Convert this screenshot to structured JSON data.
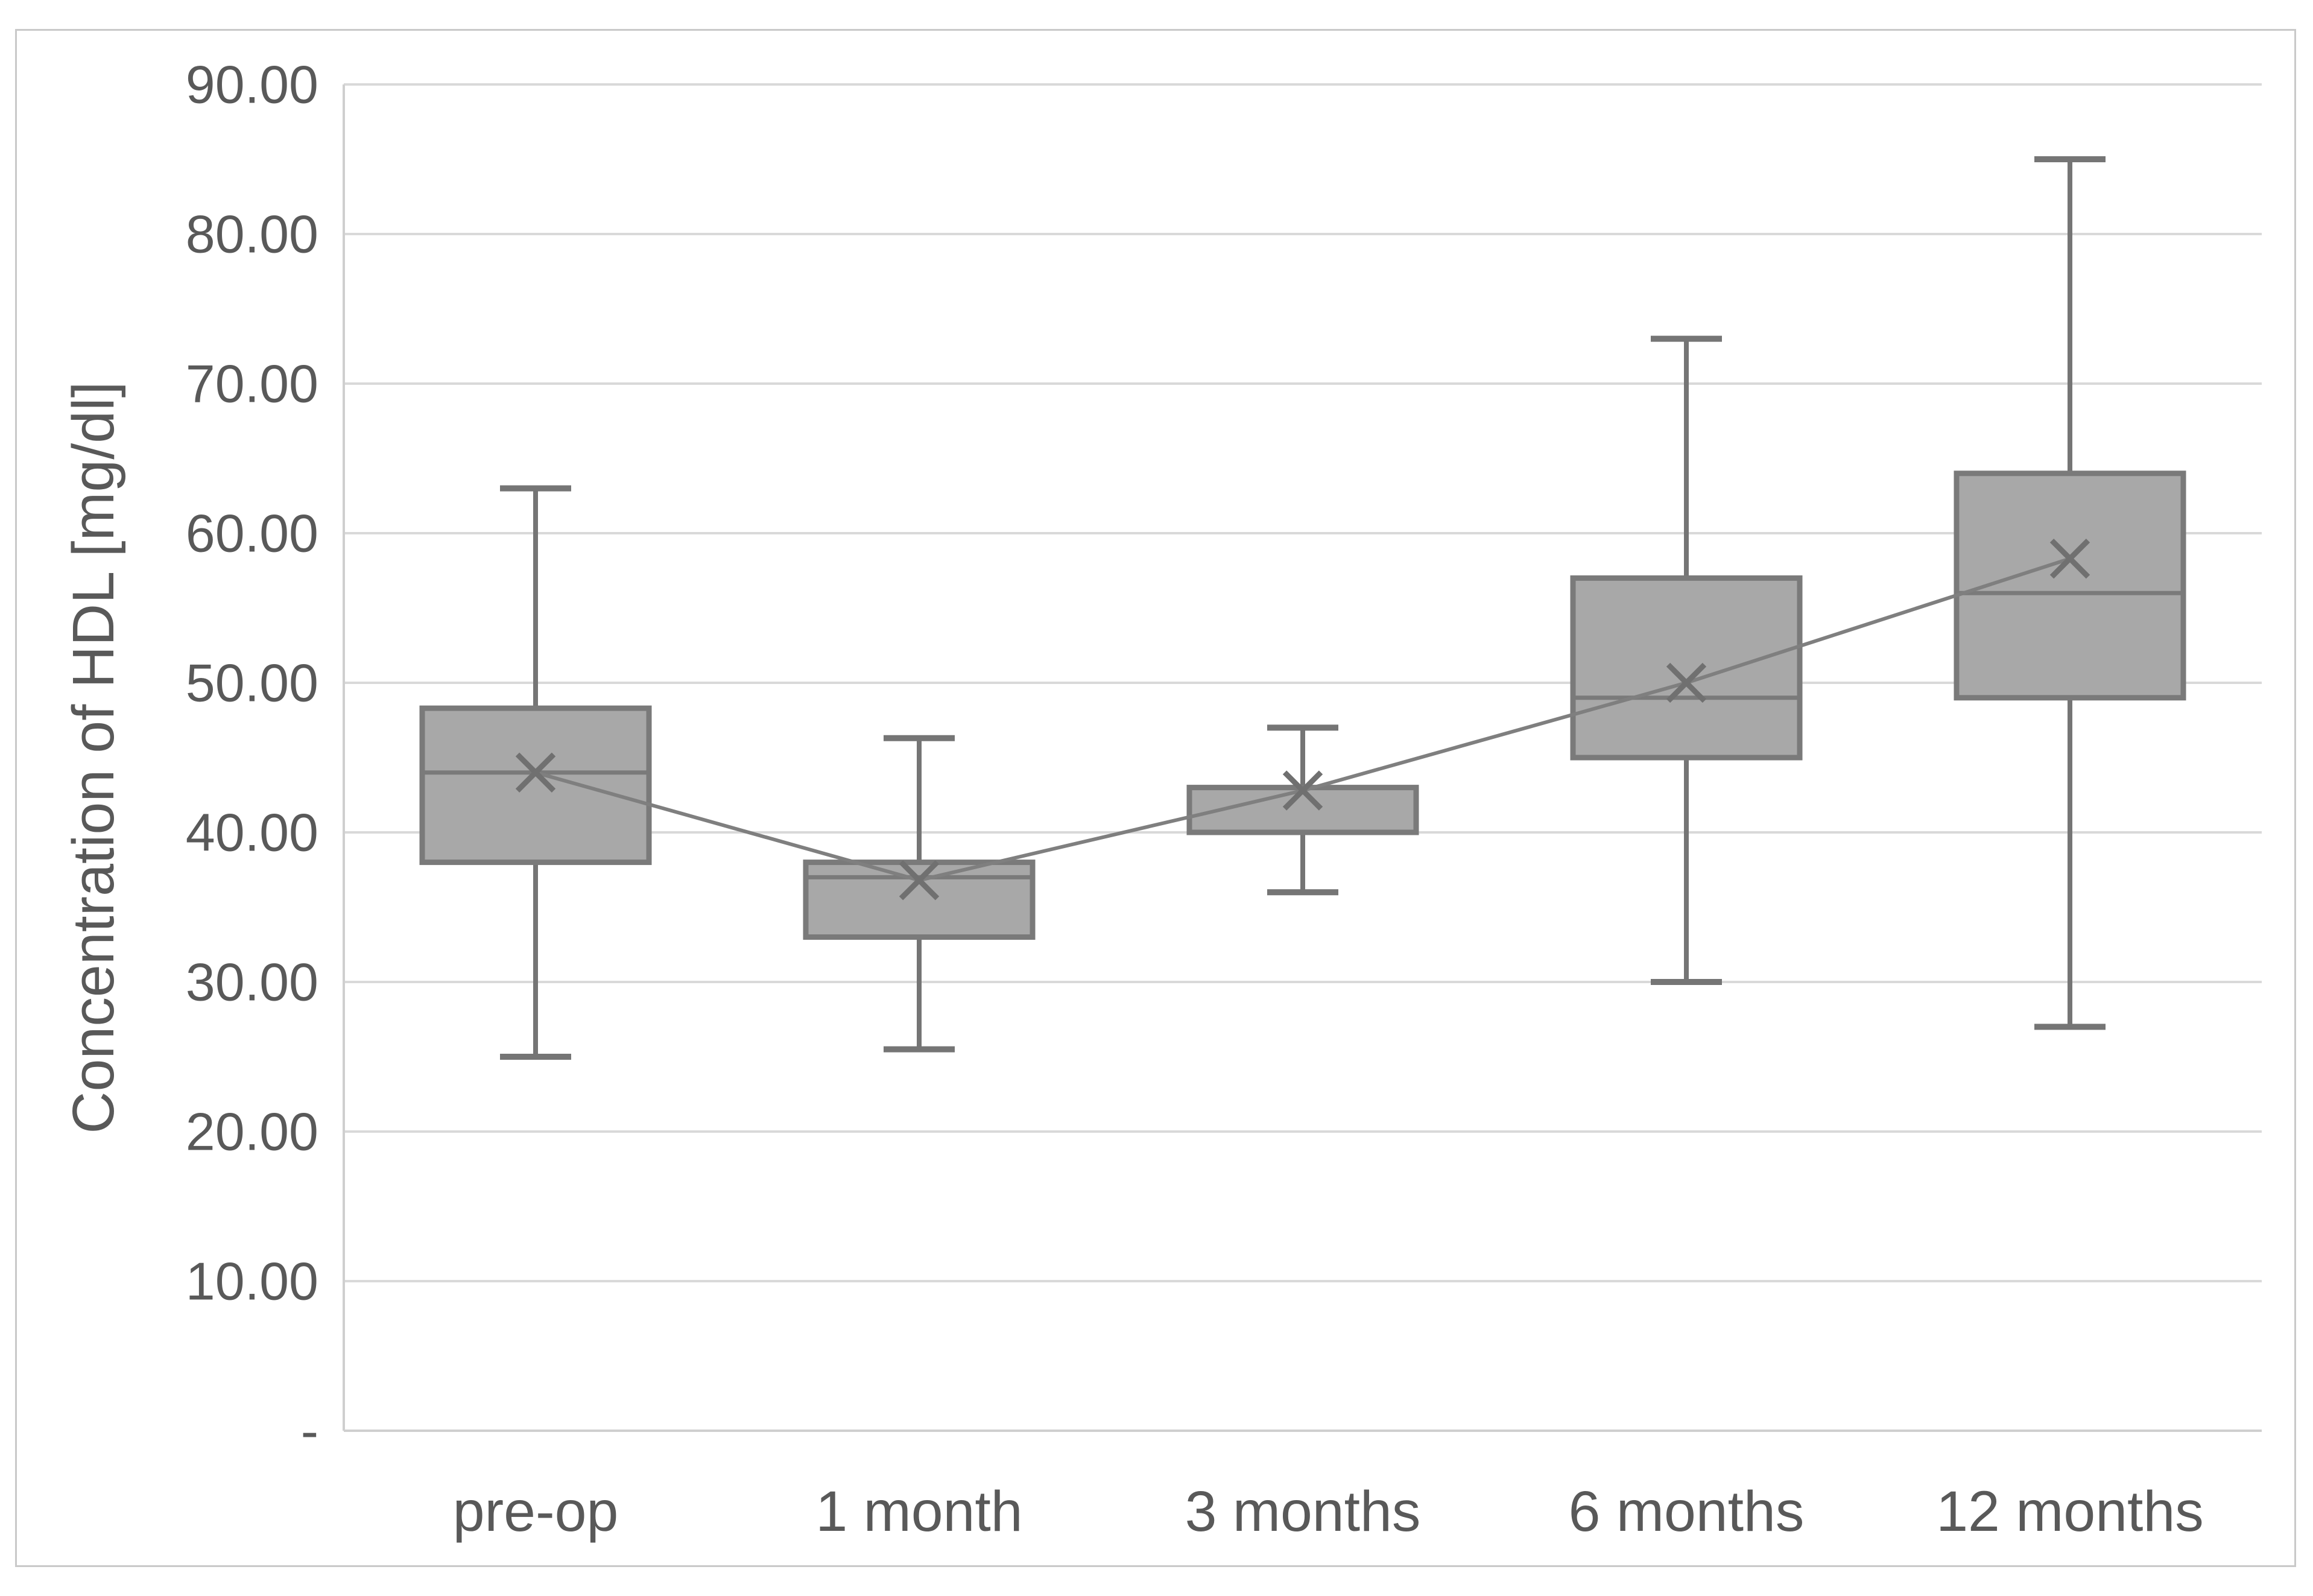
{
  "figure": {
    "background": "#ffffff",
    "border_color": "#c9c9c9"
  },
  "chart_data": {
    "type": "box",
    "title": "",
    "xlabel": "",
    "ylabel": "Concentration of HDL [mg/dl]",
    "ylim": [
      0,
      90
    ],
    "ytick_step": 10,
    "ytick_labels": [
      "-",
      "10.00",
      "20.00",
      "30.00",
      "40.00",
      "50.00",
      "60.00",
      "70.00",
      "80.00",
      "90.00"
    ],
    "grid": true,
    "legend": false,
    "categories": [
      "pre-op",
      "1 month",
      "3 months",
      "6 months",
      "12 months"
    ],
    "series": [
      {
        "name": "pre-op",
        "min": 25.0,
        "q1": 38.0,
        "median": 44.0,
        "mean": 44.0,
        "q3": 48.3,
        "max": 63.0
      },
      {
        "name": "1 month",
        "min": 25.5,
        "q1": 33.0,
        "median": 37.0,
        "mean": 36.8,
        "q3": 38.0,
        "max": 46.3
      },
      {
        "name": "3 months",
        "min": 36.0,
        "q1": 40.0,
        "median": 43.0,
        "mean": 42.8,
        "q3": 43.0,
        "max": 47.0
      },
      {
        "name": "6 months",
        "min": 30.0,
        "q1": 45.0,
        "median": 49.0,
        "mean": 50.0,
        "q3": 57.0,
        "max": 73.0
      },
      {
        "name": "12 months",
        "min": 27.0,
        "q1": 49.0,
        "median": 56.0,
        "mean": 58.3,
        "q3": 64.0,
        "max": 85.0
      }
    ],
    "mean_marker": "x",
    "mean_connector": true,
    "colors": {
      "box_fill": "#a8a8a8",
      "box_border": "#7a7a7a",
      "median": "#7a7a7a",
      "whisker": "#757575",
      "mean_marker": "#707070",
      "connector": "#7f7f7f",
      "gridline": "#d9d9d9",
      "axis_line": "#cfcfcf",
      "text": "#595959"
    }
  }
}
